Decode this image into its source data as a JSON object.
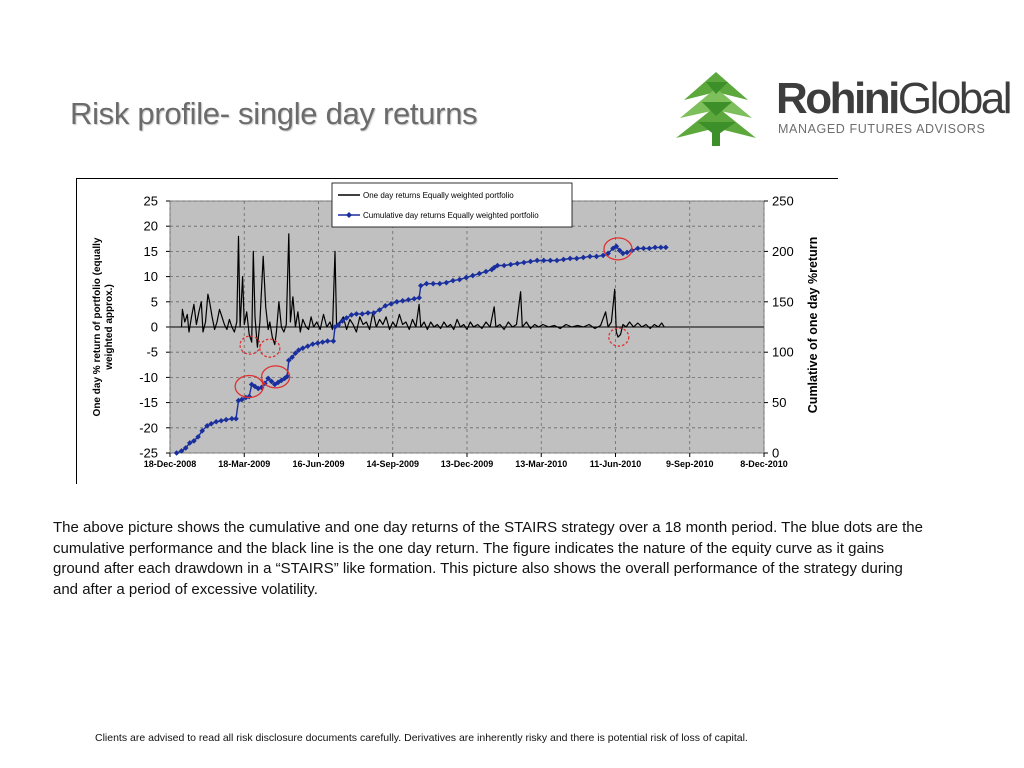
{
  "title": "Risk profile- single day returns",
  "logo": {
    "word_bold": "Rohini",
    "word_light": "Global",
    "tagline": "MANAGED FUTURES ADVISORS"
  },
  "description": "The above picture shows the cumulative and one day returns of the STAIRS strategy over a 18 month period. The blue dots are the cumulative performance and the black line is the one day return. The figure indicates the nature of the equity curve as it gains ground after each drawdown in a “STAIRS” like formation. This picture also shows the overall performance of the strategy during and after a period of excessive volatility.",
  "disclaimer": "Clients are advised to read all risk disclosure documents carefully. Derivatives are inherently risky and there is potential risk of loss of capital.",
  "colors": {
    "plot_bg": "#c0c0c0",
    "cumulative": "#1a2f9e",
    "daily": "#000000",
    "highlight": "#e03030",
    "logo_green": "#5da83c"
  },
  "chart_data": {
    "type": "line",
    "ylabel": "One day % return of portfolio (equally weighted approx.)",
    "y2label": "Cumlative of one day %return",
    "xlim": [
      "18-Dec-2008",
      "8-Dec-2010"
    ],
    "ylim": [
      -25,
      25
    ],
    "y2lim": [
      0,
      250
    ],
    "x_ticks": [
      "18-Dec-2008",
      "18-Mar-2009",
      "16-Jun-2009",
      "14-Sep-2009",
      "13-Dec-2009",
      "13-Mar-2010",
      "11-Jun-2010",
      "9-Sep-2010",
      "8-Dec-2010"
    ],
    "y_ticks": [
      "25",
      "20",
      "15",
      "10",
      "5",
      "0",
      "-5",
      "-10",
      "-15",
      "-20",
      "-25"
    ],
    "y2_ticks": [
      "250",
      "200",
      "150",
      "100",
      "50",
      "0"
    ],
    "grid": true,
    "legend_position": "top-center",
    "series": [
      {
        "name": "One day returns Equally weighted portfolio",
        "axis": "left",
        "style": "line",
        "points": [
          [
            "2009-01-01",
            0
          ],
          [
            "2009-01-02",
            3.5
          ],
          [
            "2009-01-05",
            1
          ],
          [
            "2009-01-08",
            2.5
          ],
          [
            "2009-01-10",
            -1
          ],
          [
            "2009-01-13",
            2
          ],
          [
            "2009-01-16",
            4.5
          ],
          [
            "2009-01-19",
            0.5
          ],
          [
            "2009-01-22",
            3
          ],
          [
            "2009-01-25",
            5
          ],
          [
            "2009-01-27",
            -1
          ],
          [
            "2009-01-30",
            1
          ],
          [
            "2009-02-02",
            6.5
          ],
          [
            "2009-02-04",
            5
          ],
          [
            "2009-02-07",
            2
          ],
          [
            "2009-02-10",
            -0.5
          ],
          [
            "2009-02-13",
            1
          ],
          [
            "2009-02-16",
            3.5
          ],
          [
            "2009-02-19",
            2
          ],
          [
            "2009-02-22",
            0.5
          ],
          [
            "2009-02-25",
            -0.5
          ],
          [
            "2009-02-28",
            1.5
          ],
          [
            "2009-03-03",
            0
          ],
          [
            "2009-03-06",
            -1
          ],
          [
            "2009-03-09",
            1
          ],
          [
            "2009-03-11",
            18
          ],
          [
            "2009-03-13",
            0
          ],
          [
            "2009-03-16",
            10
          ],
          [
            "2009-03-18",
            0.5
          ],
          [
            "2009-03-21",
            3
          ],
          [
            "2009-03-24",
            -1.5
          ],
          [
            "2009-03-27",
            -3
          ],
          [
            "2009-03-29",
            15
          ],
          [
            "2009-03-31",
            2
          ],
          [
            "2009-04-03",
            -4
          ],
          [
            "2009-04-06",
            1
          ],
          [
            "2009-04-10",
            14
          ],
          [
            "2009-04-13",
            4
          ],
          [
            "2009-04-16",
            -0.5
          ],
          [
            "2009-04-18",
            1
          ],
          [
            "2009-04-21",
            -2
          ],
          [
            "2009-04-24",
            -3.5
          ],
          [
            "2009-04-26",
            -1
          ],
          [
            "2009-04-29",
            5
          ],
          [
            "2009-05-02",
            0
          ],
          [
            "2009-05-05",
            -1
          ],
          [
            "2009-05-08",
            0.5
          ],
          [
            "2009-05-11",
            18.5
          ],
          [
            "2009-05-13",
            1
          ],
          [
            "2009-05-16",
            6
          ],
          [
            "2009-05-19",
            0
          ],
          [
            "2009-05-22",
            3
          ],
          [
            "2009-05-25",
            -1
          ],
          [
            "2009-05-28",
            1.5
          ],
          [
            "2009-06-01",
            0
          ],
          [
            "2009-06-04",
            -0.5
          ],
          [
            "2009-06-07",
            2
          ],
          [
            "2009-06-10",
            0
          ],
          [
            "2009-06-14",
            1
          ],
          [
            "2009-06-18",
            -0.5
          ],
          [
            "2009-06-22",
            2.5
          ],
          [
            "2009-06-26",
            0
          ],
          [
            "2009-06-30",
            1
          ],
          [
            "2009-07-03",
            -0.5
          ],
          [
            "2009-07-06",
            15
          ],
          [
            "2009-07-08",
            0
          ],
          [
            "2009-07-12",
            1
          ],
          [
            "2009-07-16",
            2
          ],
          [
            "2009-07-20",
            -0.5
          ],
          [
            "2009-07-24",
            1.5
          ],
          [
            "2009-07-28",
            0.5
          ],
          [
            "2009-08-01",
            -1
          ],
          [
            "2009-08-05",
            2
          ],
          [
            "2009-08-09",
            0.5
          ],
          [
            "2009-08-13",
            1
          ],
          [
            "2009-08-17",
            -0.5
          ],
          [
            "2009-08-21",
            3
          ],
          [
            "2009-08-25",
            0
          ],
          [
            "2009-08-29",
            1.5
          ],
          [
            "2009-09-02",
            0.5
          ],
          [
            "2009-09-06",
            2
          ],
          [
            "2009-09-10",
            -0.5
          ],
          [
            "2009-09-14",
            1
          ],
          [
            "2009-09-18",
            0
          ],
          [
            "2009-09-22",
            2.5
          ],
          [
            "2009-09-26",
            0.5
          ],
          [
            "2009-09-30",
            1
          ],
          [
            "2009-10-04",
            -0.5
          ],
          [
            "2009-10-08",
            1.5
          ],
          [
            "2009-10-12",
            0
          ],
          [
            "2009-10-16",
            4.5
          ],
          [
            "2009-10-18",
            0
          ],
          [
            "2009-10-22",
            1
          ],
          [
            "2009-10-26",
            -0.5
          ],
          [
            "2009-10-30",
            1
          ],
          [
            "2009-11-03",
            0
          ],
          [
            "2009-11-07",
            0.5
          ],
          [
            "2009-11-11",
            -0.3
          ],
          [
            "2009-11-15",
            1
          ],
          [
            "2009-11-19",
            0
          ],
          [
            "2009-11-23",
            0.5
          ],
          [
            "2009-11-27",
            -0.5
          ],
          [
            "2009-12-01",
            1.5
          ],
          [
            "2009-12-05",
            0
          ],
          [
            "2009-12-09",
            0.5
          ],
          [
            "2009-12-13",
            -0.5
          ],
          [
            "2009-12-17",
            1
          ],
          [
            "2009-12-21",
            0
          ],
          [
            "2009-12-26",
            0.5
          ],
          [
            "2009-12-31",
            -0.3
          ],
          [
            "2010-01-05",
            1
          ],
          [
            "2010-01-10",
            0
          ],
          [
            "2010-01-15",
            4
          ],
          [
            "2010-01-17",
            0
          ],
          [
            "2010-01-22",
            0.5
          ],
          [
            "2010-01-27",
            -0.5
          ],
          [
            "2010-02-01",
            1
          ],
          [
            "2010-02-06",
            0
          ],
          [
            "2010-02-11",
            0.5
          ],
          [
            "2010-02-16",
            7
          ],
          [
            "2010-02-18",
            0
          ],
          [
            "2010-02-23",
            1
          ],
          [
            "2010-02-28",
            -0.3
          ],
          [
            "2010-03-05",
            0.5
          ],
          [
            "2010-03-10",
            0
          ],
          [
            "2010-03-15",
            0.5
          ],
          [
            "2010-03-22",
            0
          ],
          [
            "2010-03-29",
            0.3
          ],
          [
            "2010-04-05",
            -0.3
          ],
          [
            "2010-04-12",
            0.5
          ],
          [
            "2010-04-19",
            0
          ],
          [
            "2010-04-26",
            0.3
          ],
          [
            "2010-05-03",
            0
          ],
          [
            "2010-05-10",
            0.5
          ],
          [
            "2010-05-17",
            -0.3
          ],
          [
            "2010-05-24",
            0.3
          ],
          [
            "2010-05-30",
            3
          ],
          [
            "2010-06-02",
            0
          ],
          [
            "2010-06-06",
            1
          ],
          [
            "2010-06-10",
            7.5
          ],
          [
            "2010-06-12",
            -1
          ],
          [
            "2010-06-14",
            -2
          ],
          [
            "2010-06-17",
            -1.5
          ],
          [
            "2010-06-20",
            0.5
          ],
          [
            "2010-06-24",
            0
          ],
          [
            "2010-06-28",
            1
          ],
          [
            "2010-07-03",
            0
          ],
          [
            "2010-07-08",
            0.8
          ],
          [
            "2010-07-13",
            0
          ],
          [
            "2010-07-18",
            0.5
          ],
          [
            "2010-07-23",
            -0.3
          ],
          [
            "2010-07-28",
            0.5
          ],
          [
            "2010-08-02",
            0
          ],
          [
            "2010-08-06",
            0.8
          ],
          [
            "2010-08-09",
            0
          ]
        ]
      },
      {
        "name": "Cumulative day returns Equally weighted portfolio",
        "axis": "right",
        "style": "line-markers",
        "points": [
          [
            "2008-12-26",
            0
          ],
          [
            "2009-01-01",
            2
          ],
          [
            "2009-01-06",
            5
          ],
          [
            "2009-01-11",
            10
          ],
          [
            "2009-01-16",
            12
          ],
          [
            "2009-01-21",
            16
          ],
          [
            "2009-01-26",
            22
          ],
          [
            "2009-02-01",
            27
          ],
          [
            "2009-02-06",
            29
          ],
          [
            "2009-02-12",
            31
          ],
          [
            "2009-02-18",
            32
          ],
          [
            "2009-02-24",
            33
          ],
          [
            "2009-03-03",
            34
          ],
          [
            "2009-03-08",
            34
          ],
          [
            "2009-03-11",
            52
          ],
          [
            "2009-03-15",
            53
          ],
          [
            "2009-03-20",
            55
          ],
          [
            "2009-03-24",
            56
          ],
          [
            "2009-03-27",
            68
          ],
          [
            "2009-03-31",
            66
          ],
          [
            "2009-04-04",
            64
          ],
          [
            "2009-04-08",
            65
          ],
          [
            "2009-04-12",
            69
          ],
          [
            "2009-04-16",
            74
          ],
          [
            "2009-04-20",
            71
          ],
          [
            "2009-04-24",
            68
          ],
          [
            "2009-04-28",
            70
          ],
          [
            "2009-05-02",
            72
          ],
          [
            "2009-05-06",
            74
          ],
          [
            "2009-05-09",
            76
          ],
          [
            "2009-05-11",
            92
          ],
          [
            "2009-05-15",
            95
          ],
          [
            "2009-05-19",
            99
          ],
          [
            "2009-05-23",
            102
          ],
          [
            "2009-05-28",
            104
          ],
          [
            "2009-06-03",
            106
          ],
          [
            "2009-06-09",
            108
          ],
          [
            "2009-06-15",
            109
          ],
          [
            "2009-06-21",
            110
          ],
          [
            "2009-06-27",
            111
          ],
          [
            "2009-07-04",
            111
          ],
          [
            "2009-07-06",
            125
          ],
          [
            "2009-07-10",
            127
          ],
          [
            "2009-07-15",
            131
          ],
          [
            "2009-07-20",
            134
          ],
          [
            "2009-07-26",
            137
          ],
          [
            "2009-08-01",
            138
          ],
          [
            "2009-08-08",
            138
          ],
          [
            "2009-08-15",
            139
          ],
          [
            "2009-08-22",
            139
          ],
          [
            "2009-08-29",
            142
          ],
          [
            "2009-09-05",
            146
          ],
          [
            "2009-09-12",
            148
          ],
          [
            "2009-09-19",
            150
          ],
          [
            "2009-09-26",
            151
          ],
          [
            "2009-10-03",
            152
          ],
          [
            "2009-10-10",
            153
          ],
          [
            "2009-10-16",
            154
          ],
          [
            "2009-10-18",
            166
          ],
          [
            "2009-10-25",
            168
          ],
          [
            "2009-11-02",
            168
          ],
          [
            "2009-11-10",
            168
          ],
          [
            "2009-11-18",
            169
          ],
          [
            "2009-11-26",
            171
          ],
          [
            "2009-12-04",
            172
          ],
          [
            "2009-12-12",
            174
          ],
          [
            "2009-12-20",
            176
          ],
          [
            "2009-12-28",
            178
          ],
          [
            "2010-01-05",
            180
          ],
          [
            "2010-01-12",
            182
          ],
          [
            "2010-01-15",
            184
          ],
          [
            "2010-01-19",
            186
          ],
          [
            "2010-01-27",
            186
          ],
          [
            "2010-02-04",
            187
          ],
          [
            "2010-02-12",
            188
          ],
          [
            "2010-02-20",
            189
          ],
          [
            "2010-02-28",
            190
          ],
          [
            "2010-03-08",
            191
          ],
          [
            "2010-03-16",
            191
          ],
          [
            "2010-03-24",
            191
          ],
          [
            "2010-04-01",
            191
          ],
          [
            "2010-04-09",
            192
          ],
          [
            "2010-04-17",
            193
          ],
          [
            "2010-04-25",
            193
          ],
          [
            "2010-05-03",
            194
          ],
          [
            "2010-05-11",
            195
          ],
          [
            "2010-05-19",
            195
          ],
          [
            "2010-05-27",
            196
          ],
          [
            "2010-06-02",
            198
          ],
          [
            "2010-06-08",
            203
          ],
          [
            "2010-06-12",
            205
          ],
          [
            "2010-06-16",
            201
          ],
          [
            "2010-06-20",
            198
          ],
          [
            "2010-06-25",
            199
          ],
          [
            "2010-07-01",
            201
          ],
          [
            "2010-07-08",
            203
          ],
          [
            "2010-07-15",
            203
          ],
          [
            "2010-07-22",
            203
          ],
          [
            "2010-07-29",
            204
          ],
          [
            "2010-08-05",
            204
          ],
          [
            "2010-08-11",
            204
          ]
        ]
      }
    ],
    "annotations": [
      {
        "shape": "ellipse",
        "style": "solid",
        "x": "2009-03-24",
        "y": -11.8
      },
      {
        "shape": "ellipse",
        "style": "solid",
        "x": "2009-04-25",
        "y": -9.9
      },
      {
        "shape": "ellipse",
        "style": "solid",
        "x": "2010-06-14",
        "y": 15.5
      },
      {
        "shape": "ellipse",
        "style": "dashed",
        "x": "2009-03-25",
        "y": -3.6
      },
      {
        "shape": "ellipse",
        "style": "dashed",
        "x": "2009-04-18",
        "y": -4.2
      },
      {
        "shape": "ellipse",
        "style": "dashed",
        "x": "2010-06-15",
        "y": -2
      }
    ]
  }
}
